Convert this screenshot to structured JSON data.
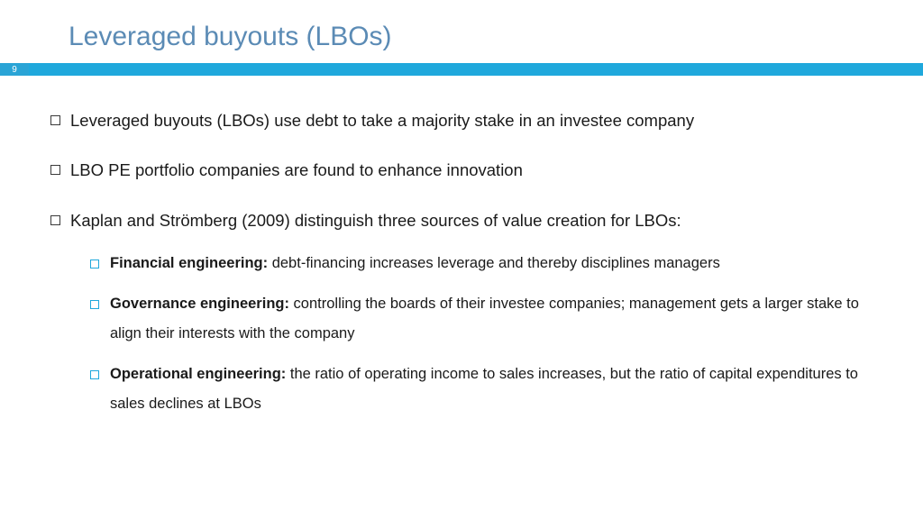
{
  "title": "Leveraged buyouts (LBOs)",
  "page_number": "9",
  "colors": {
    "title_color": "#5b8bb5",
    "accent_bar": "#1fa8dc",
    "badge_bg": "#2aa4d6",
    "text": "#1a1a1a",
    "sub_bullet_border": "#1fa8dc",
    "background": "#ffffff"
  },
  "typography": {
    "title_fontsize": 30,
    "body_fontsize": 18.5,
    "sub_fontsize": 16.5,
    "font_family": "Arial"
  },
  "bullets": [
    {
      "text": "Leveraged buyouts (LBOs) use debt to take a majority stake in an investee company"
    },
    {
      "text": "LBO PE portfolio companies are found to enhance innovation"
    },
    {
      "text": "Kaplan and Strömberg (2009) distinguish three sources of value creation for LBOs:",
      "sub": [
        {
          "lead": "Financial engineering:",
          "rest": " debt-financing increases leverage and thereby disciplines managers"
        },
        {
          "lead": "Governance engineering:",
          "rest": " controlling the boards of their investee companies; management gets a larger stake to align their interests with the company"
        },
        {
          "lead": "Operational engineering:",
          "rest": " the ratio of operating income to sales increases, but the ratio of capital expenditures to sales declines at LBOs"
        }
      ]
    }
  ]
}
